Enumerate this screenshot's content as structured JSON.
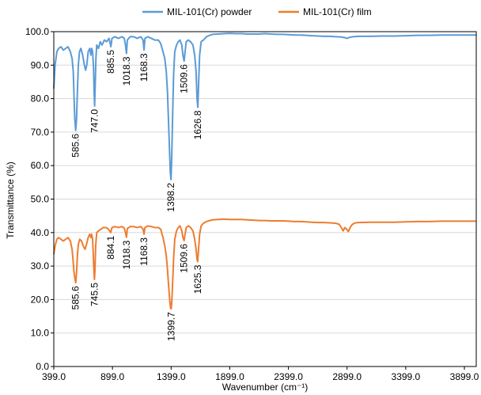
{
  "chart_data": {
    "type": "line",
    "title": "",
    "xlabel": "Wavenumber (cm⁻¹)",
    "ylabel": "Transmittance (%)",
    "xlim": [
      399.0,
      4000.0
    ],
    "ylim": [
      0.0,
      100.0
    ],
    "x_ticks": [
      "399.0",
      "899.0",
      "1399.0",
      "1899.0",
      "2399.0",
      "2899.0",
      "3399.0",
      "3899.0"
    ],
    "y_ticks": [
      "0.0",
      "10.0",
      "20.0",
      "30.0",
      "40.0",
      "50.0",
      "60.0",
      "70.0",
      "80.0",
      "90.0",
      "100.0"
    ],
    "grid": "horizontal",
    "legend_position": "top",
    "series": [
      {
        "name": "MIL-101(Cr) powder",
        "color": "#5B9BD5",
        "points": [
          [
            399,
            83
          ],
          [
            410,
            90
          ],
          [
            425,
            94
          ],
          [
            440,
            95
          ],
          [
            460,
            95.5
          ],
          [
            480,
            94.5
          ],
          [
            500,
            95
          ],
          [
            520,
            95.5
          ],
          [
            540,
            94
          ],
          [
            555,
            92
          ],
          [
            565,
            88
          ],
          [
            572,
            80
          ],
          [
            578,
            74
          ],
          [
            585.6,
            70.5
          ],
          [
            593,
            74
          ],
          [
            600,
            82
          ],
          [
            608,
            90
          ],
          [
            618,
            94
          ],
          [
            630,
            95
          ],
          [
            645,
            93
          ],
          [
            660,
            90
          ],
          [
            670,
            88.5
          ],
          [
            680,
            90
          ],
          [
            692,
            94
          ],
          [
            705,
            95
          ],
          [
            715,
            93
          ],
          [
            722,
            95
          ],
          [
            730,
            94
          ],
          [
            738,
            89
          ],
          [
            742,
            83
          ],
          [
            747,
            77.8
          ],
          [
            752,
            84
          ],
          [
            758,
            92
          ],
          [
            765,
            96
          ],
          [
            780,
            95
          ],
          [
            795,
            97
          ],
          [
            810,
            96
          ],
          [
            830,
            97.5
          ],
          [
            850,
            97
          ],
          [
            870,
            98
          ],
          [
            885.5,
            95.5
          ],
          [
            895,
            98
          ],
          [
            920,
            98.5
          ],
          [
            950,
            98
          ],
          [
            980,
            98.5
          ],
          [
            1000,
            98
          ],
          [
            1010,
            96
          ],
          [
            1018.3,
            93.5
          ],
          [
            1026,
            97.5
          ],
          [
            1050,
            98.5
          ],
          [
            1080,
            98.5
          ],
          [
            1110,
            98
          ],
          [
            1140,
            98.5
          ],
          [
            1160,
            97.5
          ],
          [
            1168.3,
            94.5
          ],
          [
            1176,
            98
          ],
          [
            1200,
            98.5
          ],
          [
            1230,
            98
          ],
          [
            1260,
            97.5
          ],
          [
            1290,
            97.5
          ],
          [
            1310,
            96.5
          ],
          [
            1330,
            94
          ],
          [
            1345,
            92
          ],
          [
            1358,
            88
          ],
          [
            1368,
            82
          ],
          [
            1378,
            72
          ],
          [
            1386,
            64
          ],
          [
            1392,
            58
          ],
          [
            1398.2,
            55.8
          ],
          [
            1404,
            62
          ],
          [
            1412,
            75
          ],
          [
            1420,
            87
          ],
          [
            1430,
            94
          ],
          [
            1445,
            96
          ],
          [
            1460,
            97
          ],
          [
            1475,
            97.5
          ],
          [
            1490,
            96
          ],
          [
            1500,
            93
          ],
          [
            1509.6,
            91.2
          ],
          [
            1518,
            94
          ],
          [
            1528,
            97
          ],
          [
            1545,
            97.5
          ],
          [
            1565,
            97
          ],
          [
            1585,
            96
          ],
          [
            1600,
            93
          ],
          [
            1612,
            88
          ],
          [
            1620,
            80
          ],
          [
            1626.8,
            77.4
          ],
          [
            1633,
            84
          ],
          [
            1642,
            93
          ],
          [
            1655,
            97
          ],
          [
            1675,
            97.5
          ],
          [
            1700,
            98.5
          ],
          [
            1750,
            99.2
          ],
          [
            1800,
            99.3
          ],
          [
            1850,
            99.4
          ],
          [
            1899,
            99.5
          ],
          [
            1950,
            99.4
          ],
          [
            2000,
            99.4
          ],
          [
            2050,
            99.3
          ],
          [
            2100,
            99.3
          ],
          [
            2150,
            99.3
          ],
          [
            2200,
            99.4
          ],
          [
            2250,
            99.3
          ],
          [
            2300,
            99.2
          ],
          [
            2350,
            99.2
          ],
          [
            2399,
            99.1
          ],
          [
            2450,
            99.0
          ],
          [
            2500,
            99.0
          ],
          [
            2550,
            98.9
          ],
          [
            2600,
            98.8
          ],
          [
            2650,
            98.7
          ],
          [
            2700,
            98.6
          ],
          [
            2750,
            98.6
          ],
          [
            2800,
            98.5
          ],
          [
            2850,
            98.4
          ],
          [
            2880,
            98.2
          ],
          [
            2899,
            98.0
          ],
          [
            2920,
            98.3
          ],
          [
            2950,
            98.5
          ],
          [
            3000,
            98.6
          ],
          [
            3100,
            98.6
          ],
          [
            3200,
            98.7
          ],
          [
            3300,
            98.7
          ],
          [
            3399,
            98.8
          ],
          [
            3500,
            98.9
          ],
          [
            3600,
            98.9
          ],
          [
            3700,
            99.0
          ],
          [
            3800,
            99.0
          ],
          [
            3899,
            99.0
          ],
          [
            4000,
            99.0
          ]
        ]
      },
      {
        "name": "MIL-101(Cr) film",
        "color": "#ED7D31",
        "points": [
          [
            399,
            33.5
          ],
          [
            410,
            36
          ],
          [
            425,
            38
          ],
          [
            440,
            38.5
          ],
          [
            460,
            38
          ],
          [
            480,
            37.5
          ],
          [
            500,
            38
          ],
          [
            520,
            38.5
          ],
          [
            540,
            37.5
          ],
          [
            555,
            35
          ],
          [
            565,
            31
          ],
          [
            572,
            28
          ],
          [
            578,
            26.5
          ],
          [
            585.6,
            25
          ],
          [
            593,
            28
          ],
          [
            600,
            33
          ],
          [
            608,
            36.5
          ],
          [
            620,
            38
          ],
          [
            635,
            37.5
          ],
          [
            650,
            36
          ],
          [
            665,
            35
          ],
          [
            678,
            36.5
          ],
          [
            692,
            38.5
          ],
          [
            705,
            39.5
          ],
          [
            715,
            38.5
          ],
          [
            722,
            39.5
          ],
          [
            730,
            38
          ],
          [
            737,
            32
          ],
          [
            742,
            28
          ],
          [
            745.5,
            26
          ],
          [
            750,
            29
          ],
          [
            756,
            36
          ],
          [
            765,
            40
          ],
          [
            780,
            40.5
          ],
          [
            800,
            41
          ],
          [
            820,
            41.5
          ],
          [
            845,
            41.5
          ],
          [
            865,
            41
          ],
          [
            884.1,
            40
          ],
          [
            895,
            41.5
          ],
          [
            920,
            41.8
          ],
          [
            950,
            41.5
          ],
          [
            980,
            41.8
          ],
          [
            1000,
            41.3
          ],
          [
            1010,
            40
          ],
          [
            1018.3,
            38.6
          ],
          [
            1026,
            41.2
          ],
          [
            1050,
            41.8
          ],
          [
            1080,
            41.8
          ],
          [
            1110,
            41.5
          ],
          [
            1140,
            41.8
          ],
          [
            1160,
            41
          ],
          [
            1168.3,
            39.5
          ],
          [
            1176,
            41.5
          ],
          [
            1200,
            42
          ],
          [
            1230,
            41.8
          ],
          [
            1260,
            41.5
          ],
          [
            1290,
            41.5
          ],
          [
            1310,
            41
          ],
          [
            1330,
            38.5
          ],
          [
            1345,
            36
          ],
          [
            1358,
            33
          ],
          [
            1368,
            29
          ],
          [
            1378,
            24
          ],
          [
            1388,
            19.5
          ],
          [
            1394,
            17.5
          ],
          [
            1399.7,
            17.2
          ],
          [
            1405,
            19.5
          ],
          [
            1412,
            25
          ],
          [
            1420,
            32
          ],
          [
            1430,
            38
          ],
          [
            1445,
            40.5
          ],
          [
            1460,
            41.5
          ],
          [
            1475,
            42
          ],
          [
            1490,
            40.5
          ],
          [
            1500,
            38.5
          ],
          [
            1509.6,
            37.6
          ],
          [
            1518,
            39.5
          ],
          [
            1528,
            41.5
          ],
          [
            1545,
            42
          ],
          [
            1565,
            41.5
          ],
          [
            1585,
            40.5
          ],
          [
            1600,
            38
          ],
          [
            1612,
            35
          ],
          [
            1620,
            32
          ],
          [
            1625.3,
            31.3
          ],
          [
            1632,
            34.5
          ],
          [
            1642,
            39.5
          ],
          [
            1655,
            42
          ],
          [
            1675,
            42.8
          ],
          [
            1700,
            43.3
          ],
          [
            1750,
            43.8
          ],
          [
            1800,
            43.9
          ],
          [
            1850,
            44.0
          ],
          [
            1899,
            43.9
          ],
          [
            1950,
            43.9
          ],
          [
            2000,
            43.9
          ],
          [
            2050,
            43.8
          ],
          [
            2100,
            43.7
          ],
          [
            2150,
            43.6
          ],
          [
            2200,
            43.6
          ],
          [
            2250,
            43.5
          ],
          [
            2300,
            43.5
          ],
          [
            2350,
            43.5
          ],
          [
            2399,
            43.4
          ],
          [
            2450,
            43.3
          ],
          [
            2500,
            43.3
          ],
          [
            2550,
            43.2
          ],
          [
            2600,
            43.1
          ],
          [
            2650,
            43.0
          ],
          [
            2700,
            43.0
          ],
          [
            2750,
            42.9
          ],
          [
            2800,
            42.8
          ],
          [
            2830,
            42.5
          ],
          [
            2850,
            41.5
          ],
          [
            2865,
            40.5
          ],
          [
            2880,
            41.5
          ],
          [
            2895,
            41.0
          ],
          [
            2910,
            40.3
          ],
          [
            2925,
            41.5
          ],
          [
            2945,
            42.5
          ],
          [
            2970,
            42.9
          ],
          [
            3000,
            43.0
          ],
          [
            3100,
            43.1
          ],
          [
            3200,
            43.1
          ],
          [
            3300,
            43.1
          ],
          [
            3399,
            43.2
          ],
          [
            3500,
            43.3
          ],
          [
            3600,
            43.3
          ],
          [
            3700,
            43.4
          ],
          [
            3800,
            43.4
          ],
          [
            3899,
            43.4
          ],
          [
            4000,
            43.4
          ]
        ]
      }
    ],
    "annotations": [
      {
        "series": 0,
        "x": 585.6,
        "y": 70.5,
        "label": "585.6"
      },
      {
        "series": 0,
        "x": 747.0,
        "y": 77.8,
        "label": "747.0"
      },
      {
        "series": 0,
        "x": 885.5,
        "y": 95.5,
        "label": "885.5"
      },
      {
        "series": 0,
        "x": 1018.3,
        "y": 93.5,
        "label": "1018.3"
      },
      {
        "series": 0,
        "x": 1168.3,
        "y": 94.5,
        "label": "1168.3"
      },
      {
        "series": 0,
        "x": 1398.2,
        "y": 55.8,
        "label": "1398.2"
      },
      {
        "series": 0,
        "x": 1509.6,
        "y": 91.2,
        "label": "1509.6"
      },
      {
        "series": 0,
        "x": 1626.8,
        "y": 77.4,
        "label": "1626.8"
      },
      {
        "series": 1,
        "x": 585.6,
        "y": 25.0,
        "label": "585.6"
      },
      {
        "series": 1,
        "x": 745.5,
        "y": 26.0,
        "label": "745.5"
      },
      {
        "series": 1,
        "x": 884.1,
        "y": 40.0,
        "label": "884.1"
      },
      {
        "series": 1,
        "x": 1018.3,
        "y": 38.6,
        "label": "1018.3"
      },
      {
        "series": 1,
        "x": 1168.3,
        "y": 39.5,
        "label": "1168.3"
      },
      {
        "series": 1,
        "x": 1399.7,
        "y": 17.2,
        "label": "1399.7"
      },
      {
        "series": 1,
        "x": 1509.6,
        "y": 37.6,
        "label": "1509.6"
      },
      {
        "series": 1,
        "x": 1625.3,
        "y": 31.3,
        "label": "1625.3"
      }
    ]
  }
}
